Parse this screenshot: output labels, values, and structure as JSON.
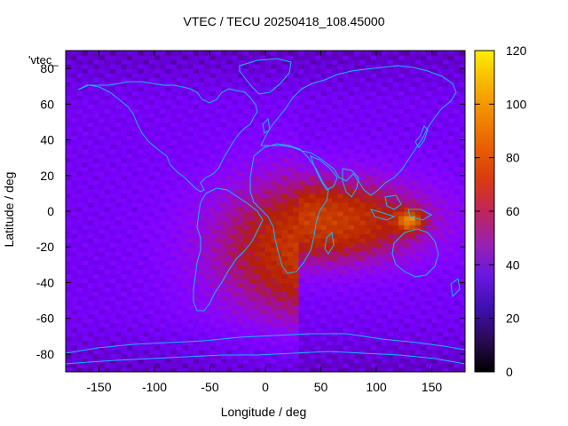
{
  "chart_data": {
    "type": "heatmap",
    "title": "VTEC / TECU 20250418_108.45000",
    "xlabel": "Longitude / deg",
    "ylabel": "Latitude / deg",
    "legend_entry": "'vtec_",
    "xlim": [
      -180,
      180
    ],
    "ylim": [
      -90,
      90
    ],
    "x_ticks": [
      -150,
      -100,
      -50,
      0,
      50,
      100,
      150
    ],
    "y_ticks": [
      -80,
      -60,
      -40,
      -20,
      0,
      20,
      40,
      60,
      80
    ],
    "colorbar": {
      "range": [
        0,
        120
      ],
      "ticks": [
        0,
        20,
        40,
        60,
        80,
        100,
        120
      ],
      "palette": "gnuplot"
    },
    "grid": false,
    "features": {
      "background_level_tecu": 25,
      "main_enhancement": {
        "lon_range": [
          -50,
          150
        ],
        "lat_range": [
          -60,
          25
        ],
        "peak_tecu": 75
      },
      "maximum": {
        "lon": 130,
        "lat": -5,
        "tecu": 110
      },
      "coastlines": true
    }
  }
}
